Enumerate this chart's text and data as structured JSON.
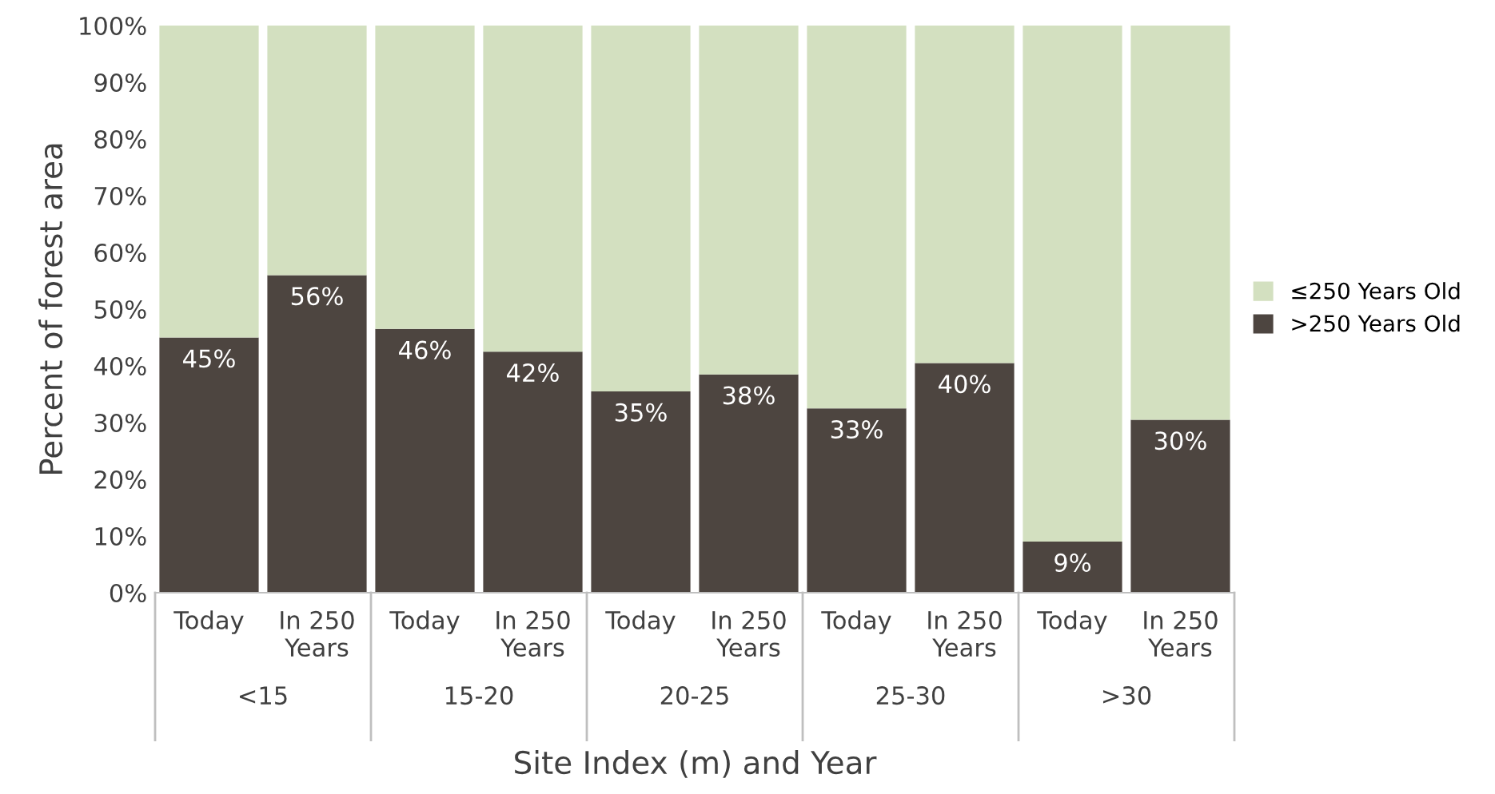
{
  "chart_data": {
    "type": "bar",
    "stacked": true,
    "xlabel": "Site Index (m) and Year",
    "ylabel": "Percent of forest area",
    "categories": [
      "Today",
      "In 250 Years",
      "Today",
      "In 250 Years",
      "Today",
      "In 250 Years",
      "Today",
      "In 250 Years",
      "Today",
      "In 250 Years"
    ],
    "annotations": [
      "<15",
      "15-20",
      "20-25",
      "25-30",
      ">30"
    ],
    "series": [
      {
        "name": ">250 Years Old",
        "color": "#4d4540",
        "values": [
          45,
          56,
          46.5,
          42.5,
          35.5,
          38.5,
          32.5,
          40.5,
          9,
          30.5
        ],
        "value_labels": [
          "45%",
          "56%",
          "46%",
          "42%",
          "35%",
          "38%",
          "33%",
          "40%",
          "9%",
          "30%"
        ]
      },
      {
        "name": "≤250 Years Old",
        "color": "#d3e0c0",
        "values": [
          55,
          44,
          53.5,
          57.5,
          64.5,
          61.5,
          67.5,
          59.5,
          91,
          69.5
        ]
      }
    ],
    "ylim": [
      0,
      100
    ],
    "yticks": [
      {
        "value": 0,
        "label": "0%"
      },
      {
        "value": 10,
        "label": "10%"
      },
      {
        "value": 20,
        "label": "20%"
      },
      {
        "value": 30,
        "label": "30%"
      },
      {
        "value": 40,
        "label": "40%"
      },
      {
        "value": 50,
        "label": "50%"
      },
      {
        "value": 60,
        "label": "60%"
      },
      {
        "value": 70,
        "label": "70%"
      },
      {
        "value": 80,
        "label": "80%"
      },
      {
        "value": 90,
        "label": "90%"
      },
      {
        "value": 100,
        "label": "100%"
      }
    ],
    "grid": false,
    "legend": "right"
  }
}
